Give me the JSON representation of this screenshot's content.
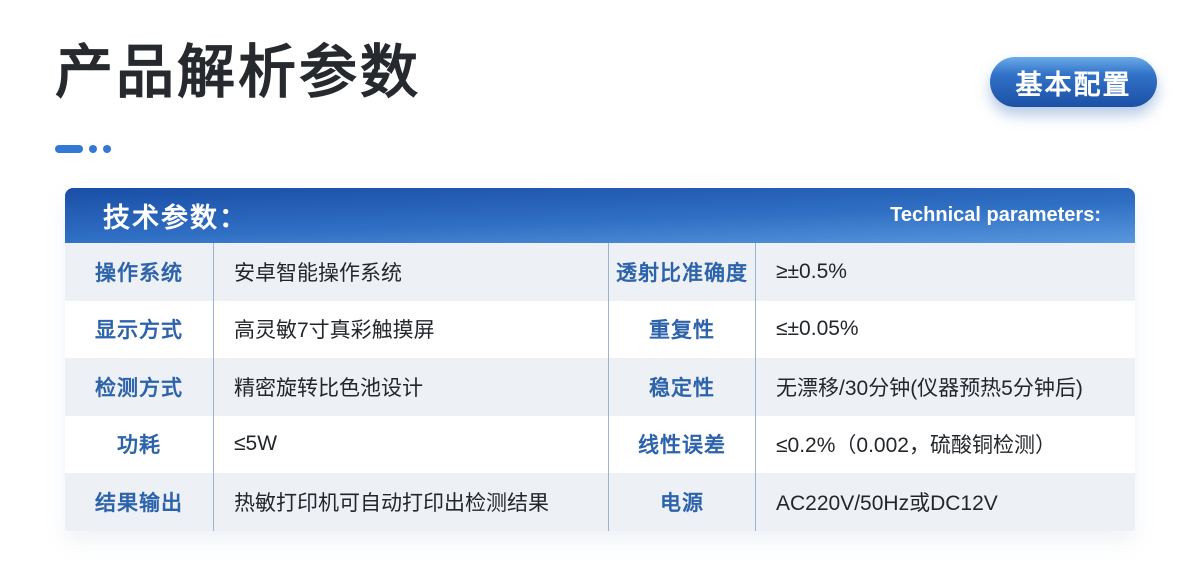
{
  "page": {
    "title": "产品解析参数",
    "badge_label": "基本配置"
  },
  "table": {
    "header_cn": "技术参数：",
    "header_en": "Technical parameters:",
    "rows": [
      {
        "label1": "操作系统",
        "value1": "安卓智能操作系统",
        "label2": "透射比准确度",
        "value2": "≥±0.5%"
      },
      {
        "label1": "显示方式",
        "value1": "高灵敏7寸真彩触摸屏",
        "label2": "重复性",
        "value2": "≤±0.05%"
      },
      {
        "label1": "检测方式",
        "value1": "精密旋转比色池设计",
        "label2": "稳定性",
        "value2": "无漂移/30分钟(仪器预热5分钟后)"
      },
      {
        "label1": "功耗",
        "value1": "≤5W",
        "label2": "线性误差",
        "value2": "≤0.2%（0.002，硫酸铜检测）"
      },
      {
        "label1": "结果输出",
        "value1": "热敏打印机可自动打印出检测结果",
        "label2": "电源",
        "value2": "AC220V/50Hz或DC12V"
      }
    ]
  },
  "colors": {
    "accent": "#3478d6",
    "header-top": "#1a4ea6",
    "header-mid": "#2f6fc3",
    "header-bottom": "#5897dd",
    "badge-top": "#6aabe8",
    "badge-mid": "#3172c8",
    "badge-bottom": "#1b50a5",
    "row-alt": "#edf0f5",
    "label-blue": "#2d63ab",
    "text-dark": "#23262b",
    "grid-line": "#9db2cf",
    "title-color": "#26292e"
  }
}
